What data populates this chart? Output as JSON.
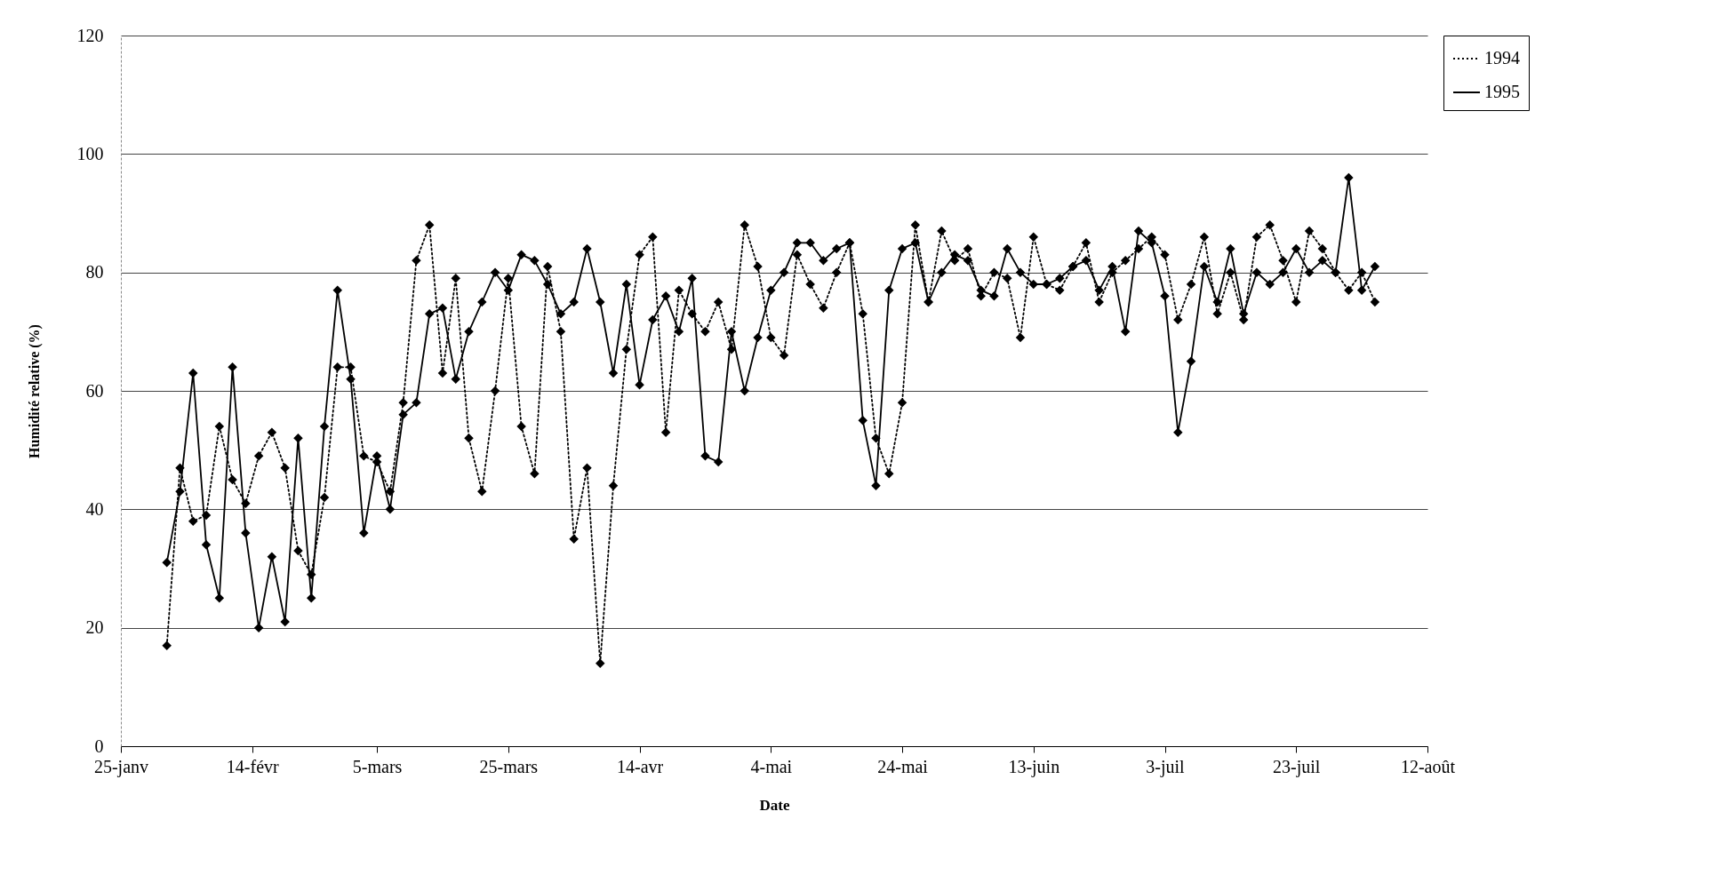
{
  "chart_data": {
    "type": "line",
    "xlabel": "Date",
    "ylabel": "Humidité relative (%)",
    "x": [
      "--02-01",
      "--02-03",
      "--02-05",
      "--02-07",
      "--02-09",
      "--02-11",
      "--02-13",
      "--02-15",
      "--02-17",
      "--02-19",
      "--02-21",
      "--02-23",
      "--02-25",
      "--02-27",
      "--03-01",
      "--03-03",
      "--03-05",
      "--03-07",
      "--03-09",
      "--03-11",
      "--03-13",
      "--03-15",
      "--03-17",
      "--03-19",
      "--03-21",
      "--03-23",
      "--03-25",
      "--03-27",
      "--03-29",
      "--03-31",
      "--04-02",
      "--04-04",
      "--04-06",
      "--04-08",
      "--04-10",
      "--04-12",
      "--04-14",
      "--04-16",
      "--04-18",
      "--04-20",
      "--04-22",
      "--04-24",
      "--04-26",
      "--04-28",
      "--04-30",
      "--05-02",
      "--05-04",
      "--05-06",
      "--05-08",
      "--05-10",
      "--05-12",
      "--05-14",
      "--05-16",
      "--05-18",
      "--05-20",
      "--05-22",
      "--05-24",
      "--05-26",
      "--05-28",
      "--05-30",
      "--06-01",
      "--06-03",
      "--06-05",
      "--06-07",
      "--06-09",
      "--06-11",
      "--06-13",
      "--06-15",
      "--06-17",
      "--06-19",
      "--06-21",
      "--06-23",
      "--06-25",
      "--06-27",
      "--06-29",
      "--07-01",
      "--07-03",
      "--07-05",
      "--07-07",
      "--07-09",
      "--07-11",
      "--07-13",
      "--07-15",
      "--07-17",
      "--07-19",
      "--07-21",
      "--07-23",
      "--07-25",
      "--07-27",
      "--07-29",
      "--07-31",
      "--08-02",
      "--08-04"
    ],
    "series": [
      {
        "name": "1994",
        "color": "#000000",
        "line_style": "dotted",
        "values": [
          17,
          47,
          38,
          39,
          54,
          45,
          41,
          49,
          53,
          47,
          33,
          29,
          42,
          64,
          64,
          49,
          48,
          43,
          58,
          82,
          88,
          63,
          79,
          52,
          43,
          60,
          79,
          54,
          46,
          81,
          70,
          35,
          47,
          14,
          44,
          67,
          83,
          86,
          53,
          77,
          73,
          70,
          75,
          67,
          88,
          81,
          69,
          66,
          83,
          78,
          74,
          80,
          85,
          73,
          52,
          46,
          58,
          88,
          75,
          87,
          82,
          84,
          76,
          80,
          79,
          69,
          86,
          78,
          77,
          81,
          85,
          75,
          80,
          82,
          84,
          86,
          83,
          72,
          78,
          86,
          73,
          80,
          72,
          86,
          88,
          82,
          75,
          87,
          84,
          80,
          77,
          80,
          75
        ]
      },
      {
        "name": "1995",
        "color": "#000000",
        "line_style": "solid",
        "values": [
          31,
          43,
          63,
          34,
          25,
          64,
          36,
          20,
          32,
          21,
          52,
          25,
          54,
          77,
          62,
          36,
          49,
          40,
          56,
          58,
          73,
          74,
          62,
          70,
          75,
          80,
          77,
          83,
          82,
          78,
          73,
          75,
          84,
          75,
          63,
          78,
          61,
          72,
          76,
          70,
          79,
          49,
          48,
          70,
          60,
          69,
          77,
          80,
          85,
          85,
          82,
          84,
          85,
          55,
          44,
          77,
          84,
          85,
          75,
          80,
          83,
          82,
          77,
          76,
          84,
          80,
          78,
          78,
          79,
          81,
          82,
          77,
          81,
          70,
          87,
          85,
          76,
          53,
          65,
          81,
          75,
          84,
          73,
          80,
          78,
          80,
          84,
          80,
          82,
          80,
          96,
          77,
          81
        ]
      }
    ],
    "xlim": [
      "--01-25",
      "--08-12"
    ],
    "xticks": [
      {
        "value": "--01-25",
        "label": "25-janv"
      },
      {
        "value": "--02-14",
        "label": "14-févr"
      },
      {
        "value": "--03-05",
        "label": "5-mars"
      },
      {
        "value": "--03-25",
        "label": "25-mars"
      },
      {
        "value": "--04-14",
        "label": "14-avr"
      },
      {
        "value": "--05-04",
        "label": "4-mai"
      },
      {
        "value": "--05-24",
        "label": "24-mai"
      },
      {
        "value": "--06-13",
        "label": "13-juin"
      },
      {
        "value": "--07-03",
        "label": "3-juil"
      },
      {
        "value": "--07-23",
        "label": "23-juil"
      },
      {
        "value": "--08-12",
        "label": "12-août"
      }
    ],
    "ylim": [
      0,
      120
    ],
    "yticks": [
      0,
      20,
      40,
      60,
      80,
      100,
      120
    ],
    "grid": "y",
    "legend": "right",
    "marker": "diamond"
  }
}
